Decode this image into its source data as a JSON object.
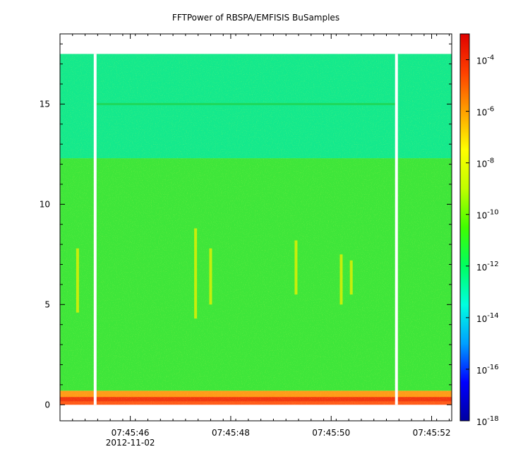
{
  "chart_data": {
    "type": "heatmap",
    "title": "FFTPower of RBSPA/EMFISIS  BuSamples",
    "xlabel": "",
    "ylabel": "",
    "x_ticks": [
      "07:45:46",
      "07:45:48",
      "07:45:50",
      "07:45:52"
    ],
    "x_date_label": "2012-11-02",
    "x_range": [
      "07:45:44.6",
      "07:45:52.4"
    ],
    "y_ticks": [
      0,
      5,
      10,
      15
    ],
    "ylim": [
      -0.8,
      18.5
    ],
    "y_data_range": [
      0,
      17.5
    ],
    "data_gaps_x": [
      "07:45:45.3",
      "07:45:51.3"
    ],
    "colorbar": {
      "scale": "log",
      "range": [
        1e-18,
        0.001
      ],
      "tick_labels": [
        {
          "base": "10",
          "exp": "-4"
        },
        {
          "base": "10",
          "exp": "-6"
        },
        {
          "base": "10",
          "exp": "-8"
        },
        {
          "base": "10",
          "exp": "-10"
        },
        {
          "base": "10",
          "exp": "-12"
        },
        {
          "base": "10",
          "exp": "-14"
        },
        {
          "base": "10",
          "exp": "-16"
        },
        {
          "base": "10",
          "exp": "-18"
        }
      ],
      "colors": [
        "#0000a0",
        "#0000ff",
        "#00a0ff",
        "#00ffe0",
        "#00ff60",
        "#40ff00",
        "#c0ff00",
        "#ffff00",
        "#ffa000",
        "#ff4000",
        "#e00000"
      ]
    },
    "bands": [
      {
        "y_range": [
          0,
          0.7
        ],
        "level": "1e-6",
        "color": "#ff5a1a"
      },
      {
        "y_range": [
          0.7,
          12.3
        ],
        "level": "1e-10",
        "color": "#3ee63a"
      },
      {
        "y_range": [
          12.3,
          17.5
        ],
        "level": "1e-12",
        "color": "#14e98c"
      }
    ],
    "line_feature": {
      "y": 15.0,
      "level": "1e-11"
    },
    "bursts": [
      {
        "x": "07:45:44.95",
        "y_range": [
          4.6,
          7.8
        ]
      },
      {
        "x": "07:45:47.3",
        "y_range": [
          4.3,
          8.8
        ]
      },
      {
        "x": "07:45:47.6",
        "y_range": [
          5.0,
          7.8
        ]
      },
      {
        "x": "07:45:49.3",
        "y_range": [
          5.5,
          8.2
        ]
      },
      {
        "x": "07:45:50.2",
        "y_range": [
          5.0,
          7.5
        ]
      },
      {
        "x": "07:45:50.4",
        "y_range": [
          5.5,
          7.2
        ]
      }
    ]
  }
}
